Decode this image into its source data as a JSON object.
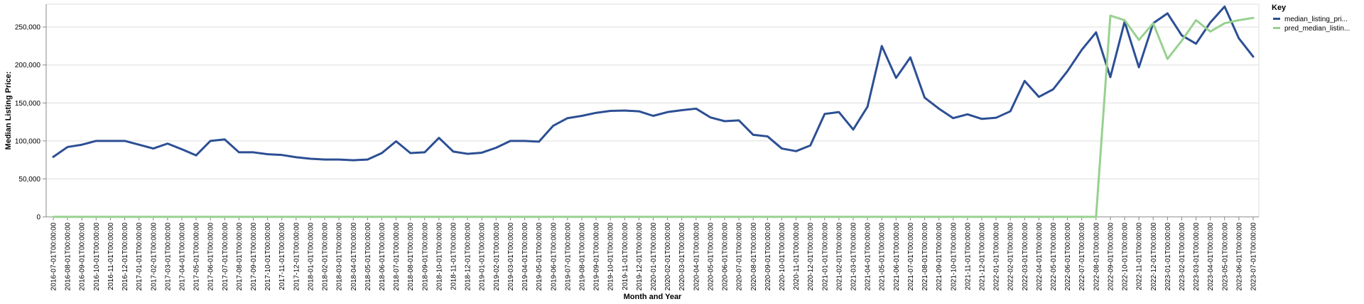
{
  "chart_data": {
    "type": "line",
    "xlabel": "Month and Year",
    "ylabel": "Median Listing Price:",
    "ylim": [
      0,
      280000
    ],
    "yticks": [
      0,
      50000,
      100000,
      150000,
      200000,
      250000
    ],
    "ytick_labels": [
      "0",
      "50,000",
      "100,000",
      "150,000",
      "200,000",
      "250,000"
    ],
    "grid": true,
    "legend_position": "top-right",
    "legend_title": "Key",
    "categories": [
      "2016-07-01T00:00:00",
      "2016-08-01T00:00:00",
      "2016-09-01T00:00:00",
      "2016-10-01T00:00:00",
      "2016-11-01T00:00:00",
      "2016-12-01T00:00:00",
      "2017-01-01T00:00:00",
      "2017-02-01T00:00:00",
      "2017-03-01T00:00:00",
      "2017-04-01T00:00:00",
      "2017-05-01T00:00:00",
      "2017-06-01T00:00:00",
      "2017-07-01T00:00:00",
      "2017-08-01T00:00:00",
      "2017-09-01T00:00:00",
      "2017-10-01T00:00:00",
      "2017-11-01T00:00:00",
      "2017-12-01T00:00:00",
      "2018-01-01T00:00:00",
      "2018-02-01T00:00:00",
      "2018-03-01T00:00:00",
      "2018-04-01T00:00:00",
      "2018-05-01T00:00:00",
      "2018-06-01T00:00:00",
      "2018-07-01T00:00:00",
      "2018-08-01T00:00:00",
      "2018-09-01T00:00:00",
      "2018-10-01T00:00:00",
      "2018-11-01T00:00:00",
      "2018-12-01T00:00:00",
      "2019-01-01T00:00:00",
      "2019-02-01T00:00:00",
      "2019-03-01T00:00:00",
      "2019-04-01T00:00:00",
      "2019-05-01T00:00:00",
      "2019-06-01T00:00:00",
      "2019-07-01T00:00:00",
      "2019-08-01T00:00:00",
      "2019-09-01T00:00:00",
      "2019-10-01T00:00:00",
      "2019-11-01T00:00:00",
      "2019-12-01T00:00:00",
      "2020-01-01T00:00:00",
      "2020-02-01T00:00:00",
      "2020-03-01T00:00:00",
      "2020-04-01T00:00:00",
      "2020-05-01T00:00:00",
      "2020-06-01T00:00:00",
      "2020-07-01T00:00:00",
      "2020-08-01T00:00:00",
      "2020-09-01T00:00:00",
      "2020-10-01T00:00:00",
      "2020-11-01T00:00:00",
      "2020-12-01T00:00:00",
      "2021-01-01T00:00:00",
      "2021-02-01T00:00:00",
      "2021-03-01T00:00:00",
      "2021-04-01T00:00:00",
      "2021-05-01T00:00:00",
      "2021-06-01T00:00:00",
      "2021-07-01T00:00:00",
      "2021-08-01T00:00:00",
      "2021-09-01T00:00:00",
      "2021-10-01T00:00:00",
      "2021-11-01T00:00:00",
      "2021-12-01T00:00:00",
      "2022-01-01T00:00:00",
      "2022-02-01T00:00:00",
      "2022-03-01T00:00:00",
      "2022-04-01T00:00:00",
      "2022-05-01T00:00:00",
      "2022-06-01T00:00:00",
      "2022-07-01T00:00:00",
      "2022-08-01T00:00:00",
      "2022-09-01T00:00:00",
      "2022-10-01T00:00:00",
      "2022-11-01T00:00:00",
      "2022-12-01T00:00:00",
      "2023-01-01T00:00:00",
      "2023-02-01T00:00:00",
      "2023-03-01T00:00:00",
      "2023-04-01T00:00:00",
      "2023-05-01T00:00:00",
      "2023-06-01T00:00:00",
      "2023-07-01T00:00:00"
    ],
    "series": [
      {
        "name": "median_listing_pri...",
        "color": "#2c4f94",
        "values": [
          79000,
          92000,
          95000,
          100000,
          100000,
          100000,
          95000,
          90000,
          96500,
          89000,
          81000,
          100000,
          102000,
          85000,
          85000,
          82500,
          81500,
          78500,
          76500,
          75500,
          75500,
          74500,
          75500,
          84000,
          99500,
          84000,
          85000,
          104000,
          86000,
          83000,
          84500,
          91000,
          100000,
          100000,
          99000,
          120000,
          130000,
          133000,
          137000,
          139500,
          140000,
          139000,
          133000,
          138000,
          140500,
          142500,
          131000,
          126000,
          127000,
          108000,
          106000,
          90000,
          86500,
          94000,
          135500,
          138000,
          115000,
          145000,
          225000,
          183000,
          210000,
          157000,
          142500,
          130000,
          135000,
          129000,
          130500,
          139000,
          179000,
          158000,
          168000,
          192000,
          220000,
          243000,
          184000,
          257000,
          197000,
          255000,
          268000,
          239000,
          228000,
          256000,
          277000,
          235000,
          211000
        ]
      },
      {
        "name": "pred_median_listin...",
        "color": "#97d18f",
        "values": [
          0,
          0,
          0,
          0,
          0,
          0,
          0,
          0,
          0,
          0,
          0,
          0,
          0,
          0,
          0,
          0,
          0,
          0,
          0,
          0,
          0,
          0,
          0,
          0,
          0,
          0,
          0,
          0,
          0,
          0,
          0,
          0,
          0,
          0,
          0,
          0,
          0,
          0,
          0,
          0,
          0,
          0,
          0,
          0,
          0,
          0,
          0,
          0,
          0,
          0,
          0,
          0,
          0,
          0,
          0,
          0,
          0,
          0,
          0,
          0,
          0,
          0,
          0,
          0,
          0,
          0,
          0,
          0,
          0,
          0,
          0,
          0,
          0,
          0,
          265000,
          259000,
          233000,
          255000,
          208000,
          232000,
          259000,
          244000,
          255000,
          259000,
          262000
        ]
      }
    ]
  }
}
